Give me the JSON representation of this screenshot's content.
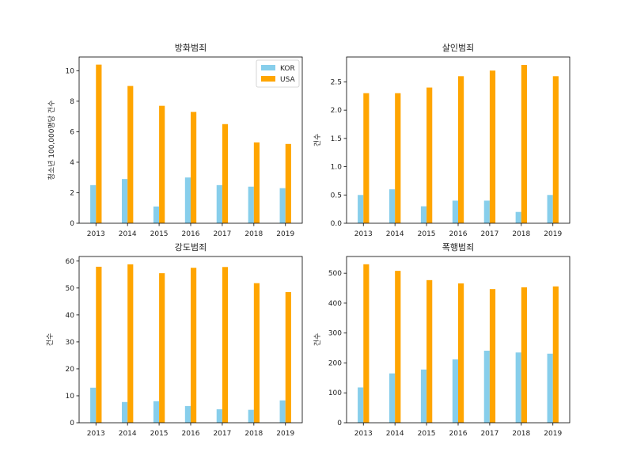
{
  "colors": {
    "kor": "#87ceeb",
    "usa": "#ffa500"
  },
  "chart_data": [
    {
      "type": "bar",
      "title": "방화범죄",
      "xlabel": "",
      "ylabel": "청소년 100,000명당 건수",
      "categories": [
        "2013",
        "2014",
        "2015",
        "2016",
        "2017",
        "2018",
        "2019"
      ],
      "series": [
        {
          "name": "KOR",
          "values": [
            2.5,
            2.9,
            1.1,
            3.0,
            2.5,
            2.4,
            2.3
          ]
        },
        {
          "name": "USA",
          "values": [
            10.4,
            9.0,
            7.7,
            7.3,
            6.5,
            5.3,
            5.2
          ]
        }
      ],
      "ylim": [
        0,
        10.9
      ],
      "yticks": [
        0,
        2,
        4,
        6,
        8,
        10
      ],
      "ytick_labels": [
        "0",
        "2",
        "4",
        "6",
        "8",
        "10"
      ],
      "legend": "top-right",
      "grid": false
    },
    {
      "type": "bar",
      "title": "살인범죄",
      "xlabel": "",
      "ylabel": "건수",
      "categories": [
        "2013",
        "2014",
        "2015",
        "2016",
        "2017",
        "2018",
        "2019"
      ],
      "series": [
        {
          "name": "KOR",
          "values": [
            0.5,
            0.6,
            0.3,
            0.4,
            0.4,
            0.2,
            0.5
          ]
        },
        {
          "name": "USA",
          "values": [
            2.3,
            2.3,
            2.4,
            2.6,
            2.7,
            2.8,
            2.6
          ]
        }
      ],
      "ylim": [
        0,
        2.94
      ],
      "yticks": [
        0,
        0.5,
        1.0,
        1.5,
        2.0,
        2.5
      ],
      "ytick_labels": [
        "0.0",
        "0.5",
        "1.0",
        "1.5",
        "2.0",
        "2.5"
      ],
      "grid": false
    },
    {
      "type": "bar",
      "title": "강도범죄",
      "xlabel": "",
      "ylabel": "건수",
      "categories": [
        "2013",
        "2014",
        "2015",
        "2016",
        "2017",
        "2018",
        "2019"
      ],
      "series": [
        {
          "name": "KOR",
          "values": [
            13.0,
            7.7,
            8.0,
            6.2,
            5.0,
            4.8,
            8.3
          ]
        },
        {
          "name": "USA",
          "values": [
            57.9,
            58.8,
            55.5,
            57.5,
            57.8,
            51.8,
            48.5
          ]
        }
      ],
      "ylim": [
        0,
        61.7
      ],
      "yticks": [
        0,
        10,
        20,
        30,
        40,
        50,
        60
      ],
      "ytick_labels": [
        "0",
        "10",
        "20",
        "30",
        "40",
        "50",
        "60"
      ],
      "grid": false
    },
    {
      "type": "bar",
      "title": "폭행범죄",
      "xlabel": "",
      "ylabel": "건수",
      "categories": [
        "2013",
        "2014",
        "2015",
        "2016",
        "2017",
        "2018",
        "2019"
      ],
      "series": [
        {
          "name": "KOR",
          "values": [
            118,
            165,
            178,
            212,
            241,
            235,
            231
          ]
        },
        {
          "name": "USA",
          "values": [
            530,
            508,
            477,
            466,
            447,
            453,
            456
          ]
        }
      ],
      "ylim": [
        0,
        556
      ],
      "yticks": [
        0,
        100,
        200,
        300,
        400,
        500
      ],
      "ytick_labels": [
        "0",
        "100",
        "200",
        "300",
        "400",
        "500"
      ],
      "grid": false
    }
  ]
}
